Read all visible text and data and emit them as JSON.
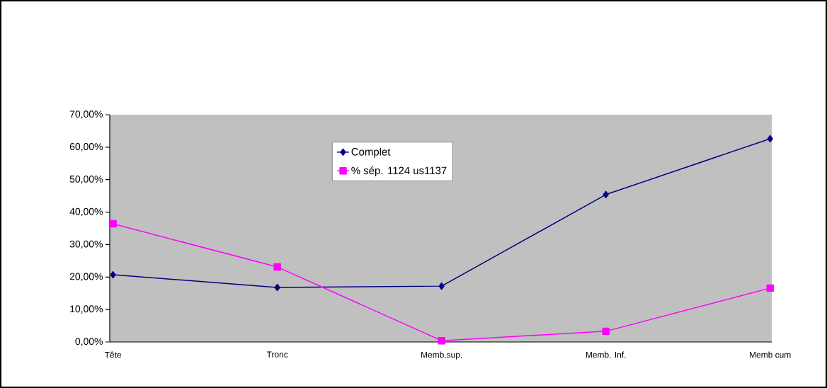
{
  "chart_data": {
    "type": "line",
    "categories": [
      "Tête",
      "Tronc",
      "Memb.sup.",
      "Memb. Inf.",
      "Memb cum"
    ],
    "series": [
      {
        "name": "Complet",
        "color": "#000080",
        "marker": "diamond",
        "values": [
          20.7,
          16.8,
          17.2,
          45.4,
          62.6
        ]
      },
      {
        "name": "% sép. 1124 us1137",
        "color": "#ff00ff",
        "marker": "square",
        "values": [
          36.4,
          23.1,
          0.4,
          3.3,
          16.6
        ]
      }
    ],
    "ylim": [
      0,
      70
    ],
    "yticks": [
      {
        "value": 0,
        "label": "0,00%"
      },
      {
        "value": 10,
        "label": "10,00%"
      },
      {
        "value": 20,
        "label": "20,00%"
      },
      {
        "value": 30,
        "label": "30,00%"
      },
      {
        "value": 40,
        "label": "40,00%"
      },
      {
        "value": 50,
        "label": "50,00%"
      },
      {
        "value": 60,
        "label": "60,00%"
      },
      {
        "value": 70,
        "label": "70,00%"
      }
    ],
    "grid": false,
    "legend": "top",
    "line_style": "solid"
  }
}
